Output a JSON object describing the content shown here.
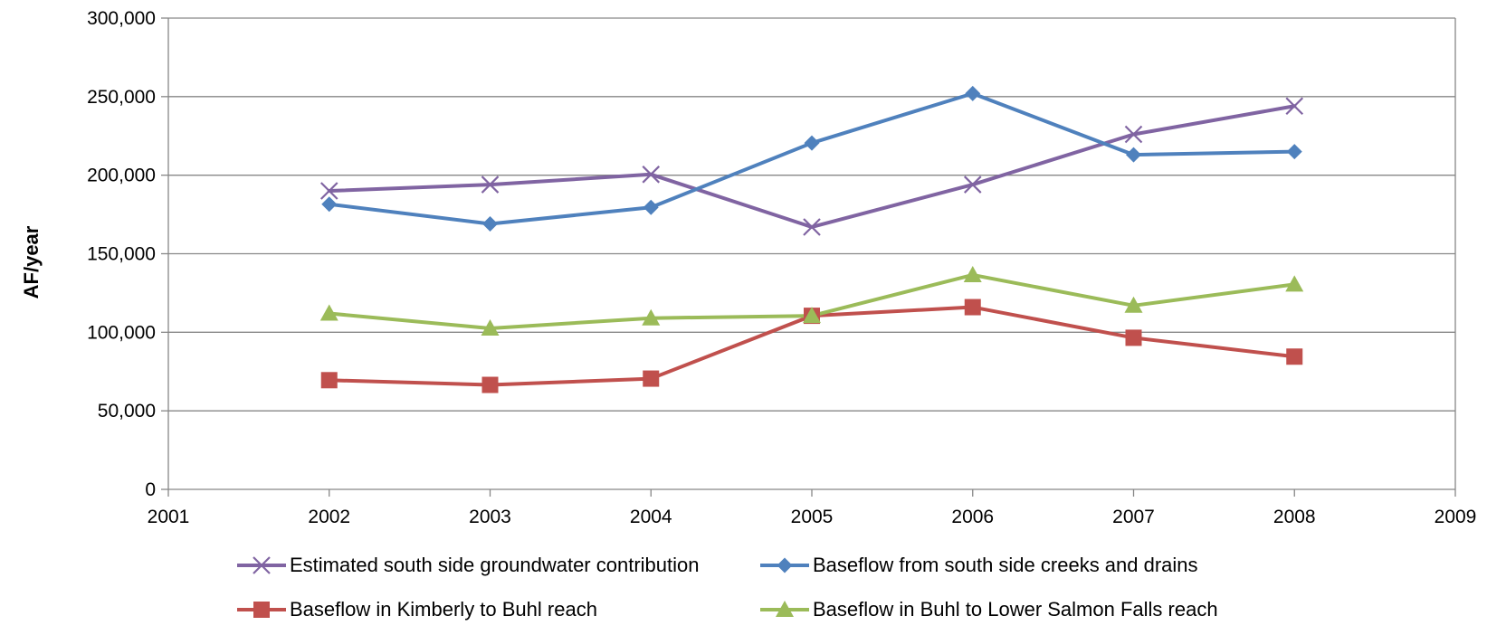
{
  "chart_data": {
    "type": "line",
    "title": "",
    "xlabel": "",
    "ylabel": "AF/year",
    "xlim": [
      2001,
      2009
    ],
    "ylim": [
      0,
      300000
    ],
    "x_ticks": [
      "2001",
      "2002",
      "2003",
      "2004",
      "2005",
      "2006",
      "2007",
      "2008",
      "2009"
    ],
    "y_ticks": [
      "0",
      "50,000",
      "100,000",
      "150,000",
      "200,000",
      "250,000",
      "300,000"
    ],
    "grid": "horizontal",
    "legend_position": "bottom",
    "x": [
      2002,
      2003,
      2004,
      2005,
      2006,
      2007,
      2008
    ],
    "series": [
      {
        "name": "Estimated south side groundwater contribution",
        "color": "#8064a2",
        "marker": "x",
        "values": [
          190000,
          194000,
          200500,
          167000,
          194000,
          226000,
          244000
        ]
      },
      {
        "name": "Baseflow from south side creeks and drains",
        "color": "#4f81bd",
        "marker": "diamond",
        "values": [
          181500,
          169000,
          179500,
          220500,
          252000,
          213000,
          215000
        ]
      },
      {
        "name": "Baseflow in Kimberly to Buhl reach",
        "color": "#c0504d",
        "marker": "square",
        "values": [
          69500,
          66500,
          70500,
          110500,
          116000,
          96500,
          84500
        ]
      },
      {
        "name": "Baseflow in Buhl to Lower Salmon Falls reach",
        "color": "#9bbb59",
        "marker": "triangle",
        "values": [
          112000,
          102500,
          109000,
          110500,
          136500,
          117000,
          130500
        ]
      }
    ]
  }
}
